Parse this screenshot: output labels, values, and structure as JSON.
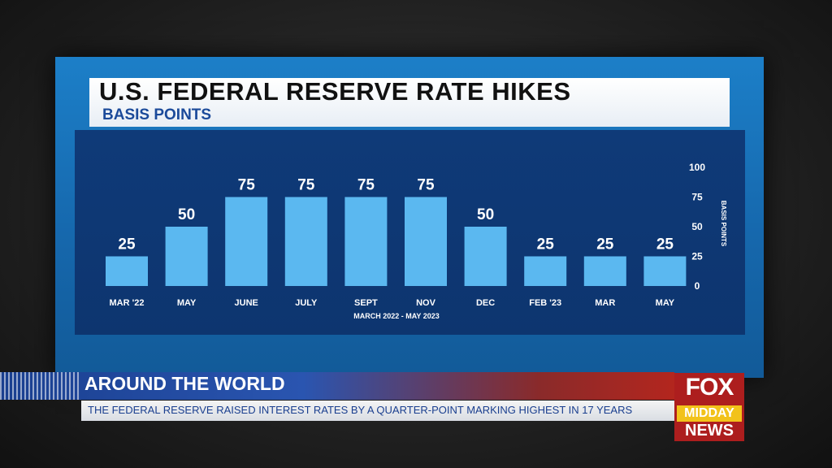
{
  "colors": {
    "bar": "#5bb8f0",
    "plot_background": "#0f3a78",
    "title_text": "#111111",
    "subtitle_text": "#1b4a9a",
    "fox_red": "#ad1e1e",
    "midday_yellow": "#f2c21a"
  },
  "chart_data": {
    "type": "bar",
    "title": "U.S. FEDERAL RESERVE RATE HIKES",
    "subtitle": "BASIS POINTS",
    "xlabel": "MARCH 2022 - MAY 2023",
    "ylabel": "BASIS POINTS",
    "categories": [
      "MAR '22",
      "MAY",
      "JUNE",
      "JULY",
      "SEPT",
      "NOV",
      "DEC",
      "FEB '23",
      "MAR",
      "MAY"
    ],
    "values": [
      25,
      50,
      75,
      75,
      75,
      75,
      50,
      25,
      25,
      25
    ],
    "ylim": [
      0,
      100
    ],
    "yticks": [
      0,
      25,
      50,
      75,
      100
    ],
    "axis_side": "right",
    "grid": false,
    "legend": "none",
    "data_labels": true
  },
  "lower_third": {
    "segment_title": "AROUND THE WORLD",
    "ticker": "THE FEDERAL RESERVE RAISED INTEREST RATES BY A QUARTER-POINT MARKING HIGHEST IN 17 YEARS"
  },
  "logo": {
    "line1": "FOX",
    "line2": "MIDDAY",
    "line3": "NEWS"
  }
}
